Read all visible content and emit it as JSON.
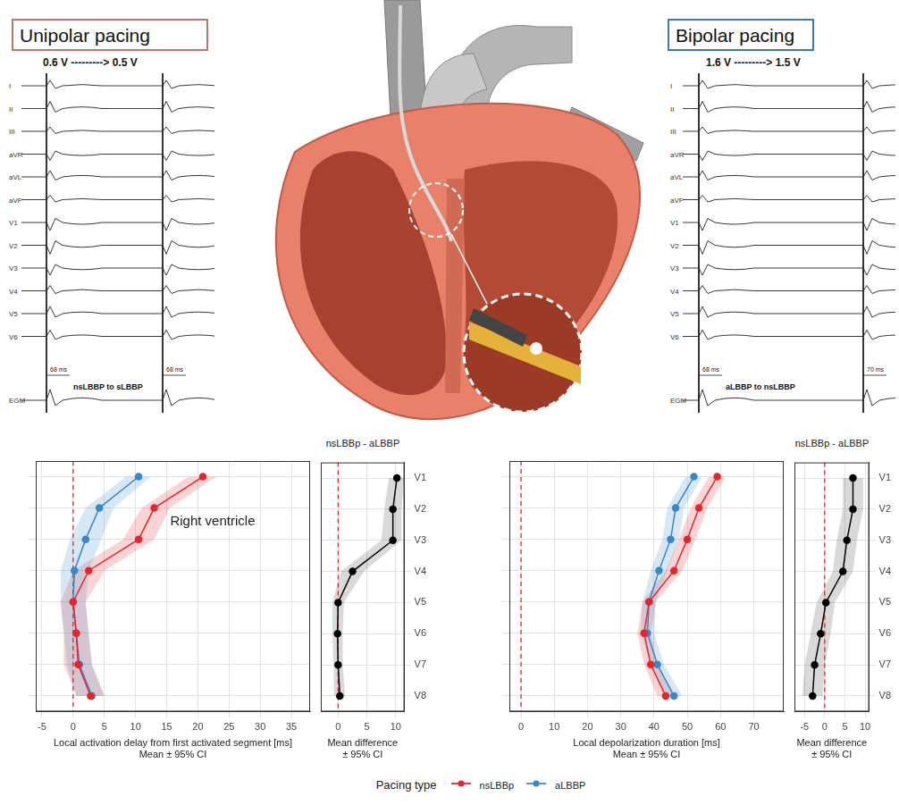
{
  "header": {
    "left_panel": {
      "title": "Unipolar pacing",
      "subtitle": "0.6 V ---------> 0.5 V",
      "leads": [
        "I",
        "II",
        "III",
        "aVR",
        "aVL",
        "aVF",
        "V1",
        "V2",
        "V3",
        "V4",
        "V5",
        "V6",
        "EGM"
      ],
      "transition": "nsLBBP to sLBBP",
      "intervals": [
        "68 ms",
        "68 ms"
      ]
    },
    "right_panel": {
      "title": "Bipolar pacing",
      "subtitle": "1.6 V ---------> 1.5 V",
      "leads": [
        "I",
        "II",
        "III",
        "aVR",
        "aVL",
        "aVF",
        "V1",
        "V2",
        "V3",
        "V4",
        "V5",
        "V6",
        "EGM"
      ],
      "transition": "aLBBP to nsLBBP",
      "intervals": [
        "68 ms",
        "70 ms"
      ]
    }
  },
  "chart_data": [
    {
      "type": "line",
      "orientation": "horizontal",
      "categories": [
        "V1",
        "V2",
        "V3",
        "V4",
        "V5",
        "V6",
        "V7",
        "V8"
      ],
      "xlabel": [
        "Local activation delay from first activated segment [ms]",
        "Mean ± 95% CI"
      ],
      "xlim": [
        -6,
        38
      ],
      "xticks": [
        -5,
        0,
        5,
        10,
        15,
        20,
        25,
        30,
        35
      ],
      "grid": true,
      "tick_labels": "x",
      "reference_line": 0,
      "annotation": "Right ventricle",
      "series": [
        {
          "name": "nsLBBp",
          "color": "#e4262c",
          "marker": "circle",
          "values": [
            20.8,
            13.0,
            10.5,
            2.5,
            0.0,
            0.5,
            0.8,
            2.8
          ],
          "lower": [
            18.5,
            11.0,
            8.0,
            0.0,
            -2.0,
            -1.5,
            -1.5,
            0.5
          ],
          "upper": [
            23.0,
            15.5,
            13.0,
            5.0,
            2.0,
            2.5,
            3.0,
            5.0
          ]
        },
        {
          "name": "aLBBP",
          "color": "#3a87c8",
          "marker": "circle",
          "values": [
            10.5,
            4.2,
            2.0,
            0.2,
            0.0,
            0.5,
            1.0,
            3.0
          ],
          "lower": [
            8.5,
            2.0,
            -0.5,
            -2.0,
            -2.0,
            -1.5,
            -1.0,
            0.5
          ],
          "upper": [
            12.5,
            6.5,
            4.5,
            2.5,
            2.0,
            2.5,
            3.0,
            5.0
          ]
        }
      ]
    },
    {
      "type": "line",
      "orientation": "horizontal",
      "title": "nsLBBp - aLBBP",
      "categories": [
        "V1",
        "V2",
        "V3",
        "V4",
        "V5",
        "V6",
        "V7",
        "V8"
      ],
      "xlabel": [
        "Mean difference",
        "± 95% CI"
      ],
      "xlim": [
        -3,
        11.5
      ],
      "xticks": [
        0,
        5,
        10
      ],
      "grid": true,
      "reference_line": 0,
      "color": "#000000",
      "marker": "circle",
      "values": [
        10.2,
        9.5,
        9.5,
        2.5,
        0.0,
        -0.1,
        0.0,
        0.3
      ],
      "lower": [
        8.8,
        8.0,
        7.5,
        0.5,
        -1.0,
        -1.0,
        -0.8,
        -0.7
      ],
      "upper": [
        11.5,
        11.0,
        11.0,
        4.5,
        1.0,
        0.8,
        0.8,
        1.2
      ]
    },
    {
      "type": "line",
      "orientation": "horizontal",
      "categories": [
        "V1",
        "V2",
        "V3",
        "V4",
        "V5",
        "V6",
        "V7",
        "V8"
      ],
      "xlabel": [
        "Local depolarization duration [ms]",
        "Mean ± 95% CI"
      ],
      "xlim": [
        -3.5,
        79
      ],
      "xticks": [
        0,
        10,
        20,
        30,
        40,
        50,
        60,
        70
      ],
      "grid": true,
      "tick_labels": "x",
      "reference_line": 0,
      "series": [
        {
          "name": "nsLBBp",
          "color": "#e4262c",
          "marker": "circle",
          "values": [
            59.0,
            53.5,
            50.0,
            46.0,
            38.5,
            37.0,
            39.0,
            43.5
          ],
          "lower": [
            56.5,
            51.0,
            47.5,
            43.5,
            36.5,
            35.0,
            37.0,
            41.0
          ],
          "upper": [
            61.5,
            56.0,
            52.5,
            48.5,
            40.5,
            39.0,
            41.0,
            46.0
          ]
        },
        {
          "name": "aLBBP",
          "color": "#3a87c8",
          "marker": "circle",
          "values": [
            52.0,
            46.5,
            45.0,
            41.5,
            38.5,
            38.0,
            41.0,
            46.0
          ],
          "lower": [
            49.5,
            44.0,
            42.5,
            39.0,
            36.5,
            36.0,
            39.0,
            43.5
          ],
          "upper": [
            54.5,
            49.0,
            47.5,
            44.0,
            40.5,
            40.0,
            43.0,
            48.5
          ]
        }
      ]
    },
    {
      "type": "line",
      "orientation": "horizontal",
      "title": "nsLBBp - aLBBP",
      "categories": [
        "V1",
        "V2",
        "V3",
        "V4",
        "V5",
        "V6",
        "V7",
        "V8"
      ],
      "xlabel": [
        "Mean difference",
        "± 95% CI"
      ],
      "xlim": [
        -7.5,
        11
      ],
      "xticks": [
        -5,
        0,
        5,
        10
      ],
      "grid": true,
      "reference_line": 0,
      "color": "#000000",
      "marker": "circle",
      "values": [
        7.0,
        7.0,
        5.5,
        4.5,
        0.3,
        -1.0,
        -2.5,
        -3.0
      ],
      "lower": [
        4.5,
        4.5,
        3.0,
        2.0,
        -2.0,
        -3.5,
        -5.0,
        -5.5
      ],
      "upper": [
        9.5,
        9.5,
        8.0,
        7.0,
        2.5,
        1.5,
        0.0,
        -0.5
      ]
    }
  ],
  "legend": {
    "title": "Pacing type",
    "position": "bottom"
  }
}
